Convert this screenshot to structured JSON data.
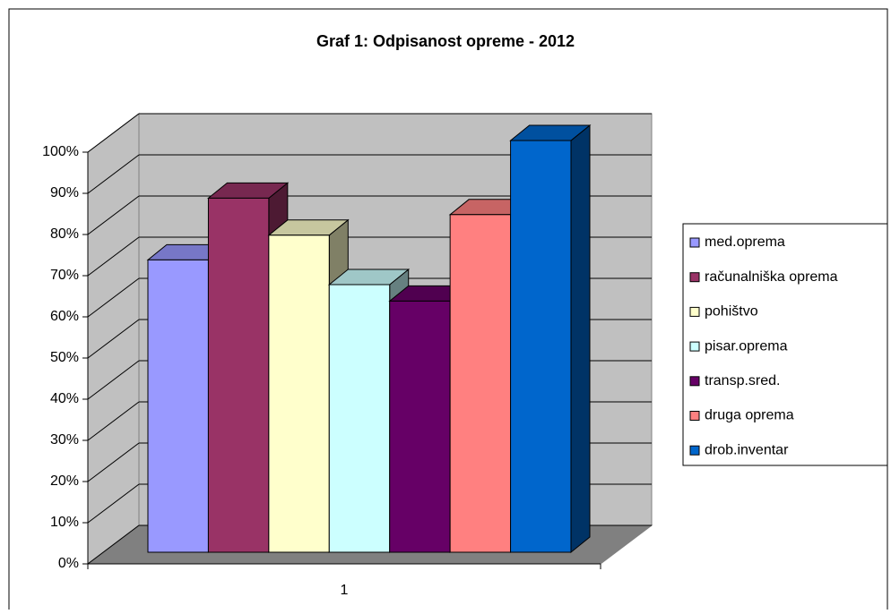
{
  "chart_data": {
    "type": "bar3d",
    "title": "Graf 1: Odpisanost opreme - 2012",
    "categories": [
      "1"
    ],
    "series": [
      {
        "name": "med.oprema",
        "color": "#9999ff",
        "values": [
          71
        ]
      },
      {
        "name": "računalniška oprema",
        "color": "#993366",
        "values": [
          86
        ]
      },
      {
        "name": "pohištvo",
        "color": "#ffffcc",
        "values": [
          77
        ]
      },
      {
        "name": "pisar.oprema",
        "color": "#ccffff",
        "values": [
          65
        ]
      },
      {
        "name": "transp.sred.",
        "color": "#660066",
        "values": [
          61
        ]
      },
      {
        "name": "druga oprema",
        "color": "#ff8080",
        "values": [
          82
        ]
      },
      {
        "name": "drob.inventar",
        "color": "#0066cc",
        "values": [
          100
        ]
      }
    ],
    "ylim": [
      0,
      100
    ],
    "yticks": [
      {
        "value": 0,
        "label": "0%"
      },
      {
        "value": 10,
        "label": "10%"
      },
      {
        "value": 20,
        "label": "20%"
      },
      {
        "value": 30,
        "label": "30%"
      },
      {
        "value": 40,
        "label": "40%"
      },
      {
        "value": 50,
        "label": "50%"
      },
      {
        "value": 60,
        "label": "60%"
      },
      {
        "value": 70,
        "label": "70%"
      },
      {
        "value": 80,
        "label": "80%"
      },
      {
        "value": 90,
        "label": "90%"
      },
      {
        "value": 100,
        "label": "100%"
      }
    ],
    "grid": true,
    "legend": "right"
  }
}
